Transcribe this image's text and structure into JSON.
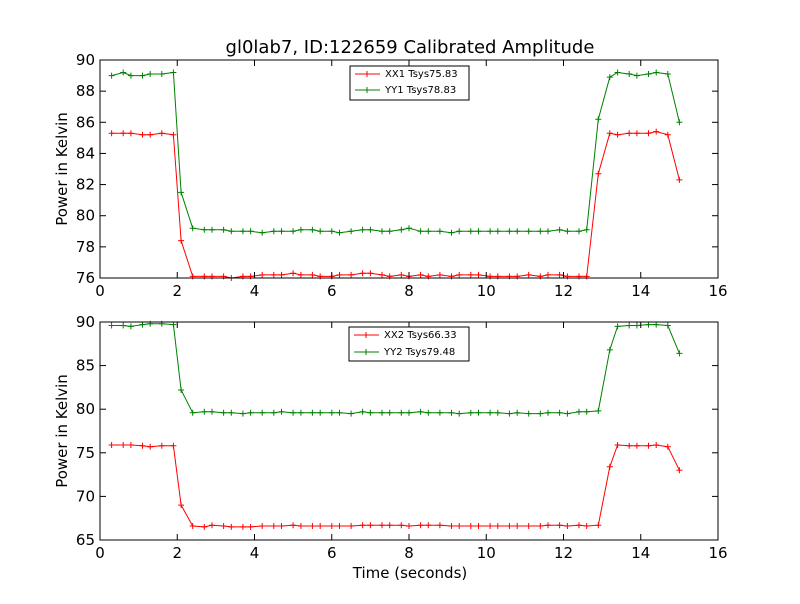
{
  "chart_data": [
    {
      "type": "line",
      "title": "gl0lab7, ID:122659 Calibrated Amplitude",
      "xlabel": "",
      "ylabel": "Power in Kelvin",
      "xlim": [
        0,
        16
      ],
      "ylim": [
        76,
        90
      ],
      "xticks": [
        "0",
        "2",
        "4",
        "6",
        "8",
        "10",
        "12",
        "14",
        "16"
      ],
      "yticks": [
        "76",
        "78",
        "80",
        "82",
        "84",
        "86",
        "88",
        "90"
      ],
      "grid": false,
      "legend_position": "top-center",
      "series": [
        {
          "name": "XX1 Tsys75.83",
          "color": "#ff0000",
          "x": [
            0.3,
            0.6,
            0.8,
            1.1,
            1.3,
            1.6,
            1.9,
            2.1,
            2.4,
            2.7,
            2.9,
            3.2,
            3.4,
            3.7,
            3.9,
            4.2,
            4.5,
            4.7,
            5.0,
            5.2,
            5.5,
            5.7,
            6.0,
            6.2,
            6.5,
            6.8,
            7.0,
            7.3,
            7.5,
            7.8,
            8.0,
            8.3,
            8.5,
            8.8,
            9.1,
            9.3,
            9.6,
            9.8,
            10.1,
            10.3,
            10.6,
            10.8,
            11.1,
            11.4,
            11.6,
            11.9,
            12.1,
            12.4,
            12.6,
            12.9,
            13.2,
            13.4,
            13.7,
            13.9,
            14.2,
            14.4,
            14.7,
            15.0
          ],
          "y": [
            85.3,
            85.3,
            85.3,
            85.2,
            85.2,
            85.3,
            85.2,
            78.4,
            76.1,
            76.1,
            76.1,
            76.1,
            76.0,
            76.1,
            76.1,
            76.2,
            76.2,
            76.2,
            76.3,
            76.2,
            76.2,
            76.1,
            76.1,
            76.2,
            76.2,
            76.3,
            76.3,
            76.2,
            76.1,
            76.2,
            76.1,
            76.2,
            76.1,
            76.2,
            76.1,
            76.2,
            76.2,
            76.2,
            76.1,
            76.1,
            76.1,
            76.1,
            76.2,
            76.1,
            76.2,
            76.2,
            76.1,
            76.1,
            76.1,
            82.7,
            85.3,
            85.2,
            85.3,
            85.3,
            85.3,
            85.4,
            85.2,
            82.3
          ]
        },
        {
          "name": "YY1 Tsys78.83",
          "color": "#008000",
          "x": [
            0.3,
            0.6,
            0.8,
            1.1,
            1.3,
            1.6,
            1.9,
            2.1,
            2.4,
            2.7,
            2.9,
            3.2,
            3.4,
            3.7,
            3.9,
            4.2,
            4.5,
            4.7,
            5.0,
            5.2,
            5.5,
            5.7,
            6.0,
            6.2,
            6.5,
            6.8,
            7.0,
            7.3,
            7.5,
            7.8,
            8.0,
            8.3,
            8.5,
            8.8,
            9.1,
            9.3,
            9.6,
            9.8,
            10.1,
            10.3,
            10.6,
            10.8,
            11.1,
            11.4,
            11.6,
            11.9,
            12.1,
            12.4,
            12.6,
            12.9,
            13.2,
            13.4,
            13.7,
            13.9,
            14.2,
            14.4,
            14.7,
            15.0
          ],
          "y": [
            89.0,
            89.2,
            89.0,
            89.0,
            89.1,
            89.1,
            89.2,
            81.5,
            79.2,
            79.1,
            79.1,
            79.1,
            79.0,
            79.0,
            79.0,
            78.9,
            79.0,
            79.0,
            79.0,
            79.1,
            79.1,
            79.0,
            79.0,
            78.9,
            79.0,
            79.1,
            79.1,
            79.0,
            79.0,
            79.1,
            79.2,
            79.0,
            79.0,
            79.0,
            78.9,
            79.0,
            79.0,
            79.0,
            79.0,
            79.0,
            79.0,
            79.0,
            79.0,
            79.0,
            79.0,
            79.1,
            79.0,
            79.0,
            79.1,
            86.2,
            88.9,
            89.2,
            89.1,
            89.0,
            89.1,
            89.2,
            89.1,
            86.0
          ]
        }
      ]
    },
    {
      "type": "line",
      "title": "",
      "xlabel": "Time (seconds)",
      "ylabel": "Power in Kelvin",
      "xlim": [
        0,
        16
      ],
      "ylim": [
        65,
        90
      ],
      "xticks": [
        "0",
        "2",
        "4",
        "6",
        "8",
        "10",
        "12",
        "14",
        "16"
      ],
      "yticks": [
        "65",
        "70",
        "75",
        "80",
        "85",
        "90"
      ],
      "grid": false,
      "legend_position": "top-center",
      "series": [
        {
          "name": "XX2 Tsys66.33",
          "color": "#ff0000",
          "x": [
            0.3,
            0.6,
            0.8,
            1.1,
            1.3,
            1.6,
            1.9,
            2.1,
            2.4,
            2.7,
            2.9,
            3.2,
            3.4,
            3.7,
            3.9,
            4.2,
            4.5,
            4.7,
            5.0,
            5.2,
            5.5,
            5.7,
            6.0,
            6.2,
            6.5,
            6.8,
            7.0,
            7.3,
            7.5,
            7.8,
            8.0,
            8.3,
            8.5,
            8.8,
            9.1,
            9.3,
            9.6,
            9.8,
            10.1,
            10.3,
            10.6,
            10.8,
            11.1,
            11.4,
            11.6,
            11.9,
            12.1,
            12.4,
            12.6,
            12.9,
            13.2,
            13.4,
            13.7,
            13.9,
            14.2,
            14.4,
            14.7,
            15.0
          ],
          "y": [
            75.9,
            75.9,
            75.9,
            75.8,
            75.7,
            75.8,
            75.8,
            69.0,
            66.6,
            66.5,
            66.7,
            66.6,
            66.5,
            66.5,
            66.5,
            66.6,
            66.6,
            66.6,
            66.7,
            66.6,
            66.6,
            66.6,
            66.6,
            66.6,
            66.6,
            66.7,
            66.7,
            66.7,
            66.7,
            66.7,
            66.6,
            66.7,
            66.7,
            66.7,
            66.6,
            66.6,
            66.6,
            66.6,
            66.6,
            66.6,
            66.6,
            66.6,
            66.6,
            66.6,
            66.7,
            66.7,
            66.6,
            66.7,
            66.6,
            66.7,
            73.4,
            75.9,
            75.8,
            75.8,
            75.8,
            75.9,
            75.7,
            73.0
          ]
        },
        {
          "name": "YY2 Tsys79.48",
          "color": "#008000",
          "x": [
            0.3,
            0.6,
            0.8,
            1.1,
            1.3,
            1.6,
            1.9,
            2.1,
            2.4,
            2.7,
            2.9,
            3.2,
            3.4,
            3.7,
            3.9,
            4.2,
            4.5,
            4.7,
            5.0,
            5.2,
            5.5,
            5.7,
            6.0,
            6.2,
            6.5,
            6.8,
            7.0,
            7.3,
            7.5,
            7.8,
            8.0,
            8.3,
            8.5,
            8.8,
            9.1,
            9.3,
            9.6,
            9.8,
            10.1,
            10.3,
            10.6,
            10.8,
            11.1,
            11.4,
            11.6,
            11.9,
            12.1,
            12.4,
            12.6,
            12.9,
            13.2,
            13.4,
            13.7,
            13.9,
            14.2,
            14.4,
            14.7,
            15.0
          ],
          "y": [
            89.6,
            89.6,
            89.5,
            89.7,
            89.8,
            89.8,
            89.7,
            82.2,
            79.6,
            79.7,
            79.7,
            79.6,
            79.6,
            79.5,
            79.6,
            79.6,
            79.6,
            79.7,
            79.6,
            79.6,
            79.6,
            79.6,
            79.6,
            79.6,
            79.5,
            79.7,
            79.6,
            79.6,
            79.6,
            79.6,
            79.6,
            79.7,
            79.6,
            79.6,
            79.6,
            79.5,
            79.6,
            79.6,
            79.6,
            79.6,
            79.5,
            79.6,
            79.5,
            79.5,
            79.6,
            79.6,
            79.5,
            79.7,
            79.7,
            79.8,
            86.8,
            89.5,
            89.6,
            89.6,
            89.7,
            89.7,
            89.6,
            86.4
          ]
        }
      ]
    }
  ]
}
